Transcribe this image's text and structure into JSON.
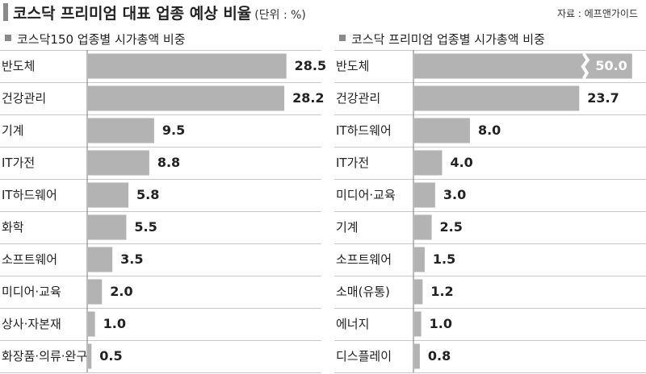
{
  "header": {
    "title": "코스닥 프리미엄 대표 업종 예상 비율",
    "unit": "(단위 : %)",
    "source": "자료 : 에프앤가이드"
  },
  "chart_data": [
    {
      "type": "bar",
      "orientation": "horizontal",
      "title": "코스닥150 업종별 시가총액 비중",
      "categories": [
        "반도체",
        "건강관리",
        "기계",
        "IT가전",
        "IT하드웨어",
        "화학",
        "소프트웨어",
        "미디어·교육",
        "상사·자본재",
        "화장품·의류·완구"
      ],
      "values": [
        28.5,
        28.2,
        9.5,
        8.8,
        5.8,
        5.5,
        3.5,
        2.0,
        1.0,
        0.5
      ],
      "value_labels": [
        "28.5",
        "28.2",
        "9.5",
        "8.8",
        "5.8",
        "5.5",
        "3.5",
        "2.0",
        "1.0",
        "0.5"
      ],
      "bar_color": "#b3b3b3",
      "grid": false
    },
    {
      "type": "bar",
      "orientation": "horizontal",
      "title": "코스닥 프리미엄 업종별 시가총액 비중",
      "categories": [
        "반도체",
        "건강관리",
        "IT하드웨어",
        "IT가전",
        "미디어·교육",
        "기계",
        "소프트웨어",
        "소매(유통)",
        "에너지",
        "디스플레이"
      ],
      "values": [
        50.0,
        23.7,
        8.0,
        4.0,
        3.0,
        2.5,
        1.5,
        1.2,
        1.0,
        0.8
      ],
      "value_labels": [
        "50.0",
        "23.7",
        "8.0",
        "4.0",
        "3.0",
        "2.5",
        "1.5",
        "1.2",
        "1.0",
        "0.8"
      ],
      "bar_color": "#b3b3b3",
      "axis_break_on_first_bar": true,
      "grid": false
    }
  ],
  "colors": {
    "bar": "#b3b3b3",
    "row_divider": "#c8c8c8",
    "title_mark": "#8a8a8a",
    "axis": "#777777",
    "break": "#ffffff"
  }
}
